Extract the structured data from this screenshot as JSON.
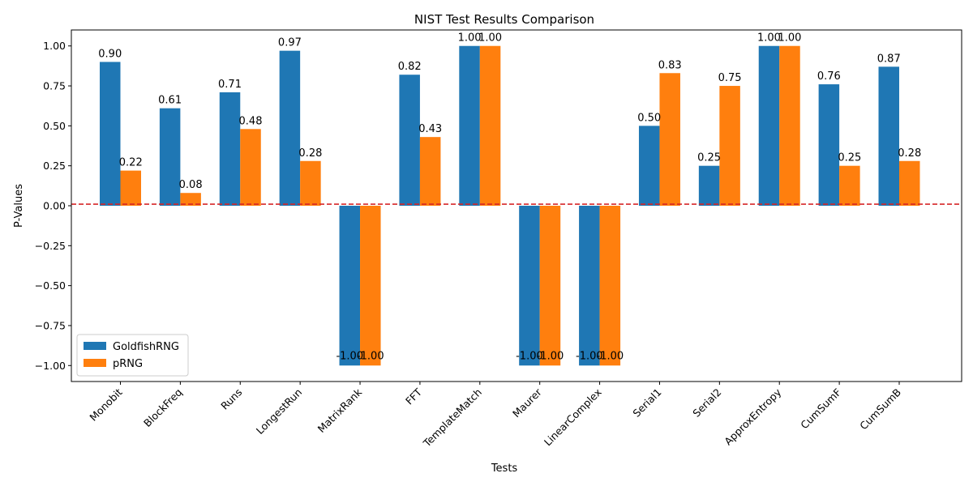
{
  "chart_data": {
    "type": "bar",
    "title": "NIST Test Results Comparison",
    "xlabel": "Tests",
    "ylabel": "P-Values",
    "categories": [
      "Monobit",
      "BlockFreq",
      "Runs",
      "LongestRun",
      "MatrixRank",
      "FFT",
      "TemplateMatch",
      "Maurer",
      "LinearComplex",
      "Serial1",
      "Serial2",
      "ApproxEntropy",
      "CumSumF",
      "CumSumB"
    ],
    "series": [
      {
        "name": "GoldfishRNG",
        "color": "#1f77b4",
        "values": [
          0.9,
          0.61,
          0.71,
          0.97,
          -1.0,
          0.82,
          1.0,
          -1.0,
          -1.0,
          0.5,
          0.25,
          1.0,
          0.76,
          0.87
        ]
      },
      {
        "name": "pRNG",
        "color": "#ff7f0e",
        "values": [
          0.22,
          0.08,
          0.48,
          0.28,
          -1.0,
          0.43,
          1.0,
          -1.0,
          -1.0,
          0.83,
          0.75,
          1.0,
          0.25,
          0.28
        ]
      }
    ],
    "yticks": [
      -1.0,
      -0.75,
      -0.5,
      -0.25,
      0.0,
      0.25,
      0.5,
      0.75,
      1.0
    ],
    "ylim": [
      -1.1,
      1.1
    ],
    "reference_line": {
      "y": 0.01,
      "color": "#d62728",
      "style": "dashed"
    },
    "legend_position": "lower-left",
    "grid": false
  }
}
